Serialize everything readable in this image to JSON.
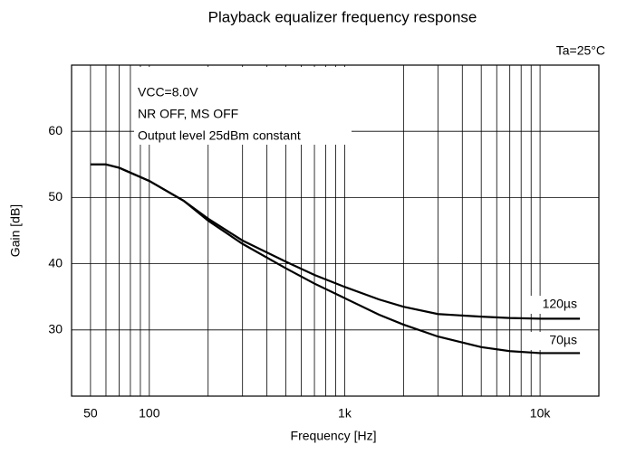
{
  "chart_data": {
    "type": "line",
    "title": "Playback equalizer frequency response",
    "x_label": "Frequency [Hz]",
    "y_label": "Gain [dB]",
    "annotations": [
      "Ta=25°C",
      "VCC=8.0V",
      "NR OFF, MS OFF",
      "Output level 25dBm constant"
    ],
    "x": [
      50,
      60,
      70,
      100,
      150,
      200,
      300,
      500,
      700,
      1000,
      1500,
      2000,
      3000,
      5000,
      7000,
      10000,
      16000
    ],
    "series": [
      {
        "name": "120µs",
        "color": "#000000",
        "values": [
          55,
          55,
          54.5,
          52.5,
          49.5,
          46.8,
          43.5,
          40.3,
          38.3,
          36.5,
          34.6,
          33.5,
          32.4,
          32,
          31.8,
          31.7,
          31.7
        ]
      },
      {
        "name": "70µs",
        "color": "#000000",
        "values": [
          55,
          55,
          54.5,
          52.5,
          49.5,
          46.5,
          43,
          39.3,
          37,
          34.8,
          32.3,
          30.8,
          29,
          27.4,
          26.8,
          26.5,
          26.5
        ]
      }
    ],
    "xlog": true,
    "xlim": [
      40,
      20000
    ],
    "ylim": [
      20,
      70
    ],
    "xticks": [
      50,
      100,
      {
        "value": 1000,
        "label": "1k"
      },
      {
        "value": 10000,
        "label": "10k"
      }
    ],
    "xminor": [
      60,
      70,
      80,
      90,
      200,
      300,
      400,
      500,
      600,
      700,
      800,
      900,
      2000,
      3000,
      4000,
      5000,
      6000,
      7000,
      8000,
      9000
    ],
    "yticks": [
      30,
      40,
      50,
      60
    ],
    "grid": true
  }
}
